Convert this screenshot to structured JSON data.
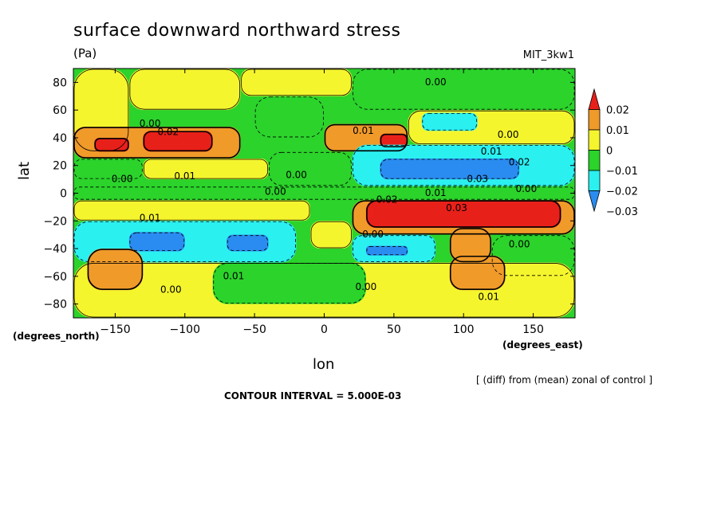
{
  "header": {
    "title": "surface downward northward stress",
    "units": "(Pa)",
    "model": "MIT_3kw1"
  },
  "footer": {
    "note": "[ (diff) from (mean) zonal of control ]",
    "contour_interval": "CONTOUR INTERVAL = 5.000E-03"
  },
  "chart_data": {
    "type": "heatmap",
    "title": "surface downward northward stress",
    "subtitle": "(Pa)",
    "xlabel": "lon",
    "ylabel": "lat",
    "x_unit_label": "(degrees_east)",
    "y_unit_label": "(degrees_north)",
    "xlim": [
      -180,
      180
    ],
    "ylim": [
      -90,
      90
    ],
    "x_ticks": [
      -150,
      -100,
      -50,
      0,
      50,
      100,
      150
    ],
    "y_ticks": [
      80,
      60,
      40,
      20,
      0,
      -20,
      -40,
      -60,
      -80
    ],
    "colorbar": {
      "tick_labels": [
        "0.02",
        "0.01",
        "0",
        "−0.01",
        "−0.02",
        "−0.03"
      ],
      "tick_values": [
        0.02,
        0.01,
        0,
        -0.01,
        -0.02,
        -0.03
      ],
      "levels": [
        {
          "range": [
            0.02,
            0.03
          ],
          "color": "#e8201a"
        },
        {
          "range": [
            0.01,
            0.02
          ],
          "color": "#f09a2a"
        },
        {
          "range": [
            0.0,
            0.01
          ],
          "color": "#f5f52e"
        },
        {
          "range": [
            -0.01,
            0.0
          ],
          "color": "#2bd32b"
        },
        {
          "range": [
            -0.02,
            -0.01
          ],
          "color": "#2bf0f0"
        },
        {
          "range": [
            -0.03,
            -0.02
          ],
          "color": "#2a8cf0"
        }
      ]
    },
    "contour_interval": 0.005,
    "contour_labels": [
      {
        "lon": 80,
        "lat": 80,
        "text": "0.00"
      },
      {
        "lon": -125,
        "lat": 50,
        "text": "0.00"
      },
      {
        "lon": -112,
        "lat": 44,
        "text": "0.02"
      },
      {
        "lon": 28,
        "lat": 45,
        "text": "0.01"
      },
      {
        "lon": 132,
        "lat": 42,
        "text": "0.00"
      },
      {
        "lon": 120,
        "lat": 30,
        "text": "0.01"
      },
      {
        "lon": 140,
        "lat": 22,
        "text": "0.02"
      },
      {
        "lon": 110,
        "lat": 10,
        "text": "0.03"
      },
      {
        "lon": -145,
        "lat": 10,
        "text": "0.00"
      },
      {
        "lon": -100,
        "lat": 12,
        "text": "0.01"
      },
      {
        "lon": -20,
        "lat": 13,
        "text": "0.00"
      },
      {
        "lon": -35,
        "lat": 1,
        "text": "0.00"
      },
      {
        "lon": 45,
        "lat": -5,
        "text": "0.02"
      },
      {
        "lon": 80,
        "lat": 0,
        "text": "0.01"
      },
      {
        "lon": 95,
        "lat": -11,
        "text": "0.03"
      },
      {
        "lon": 145,
        "lat": 3,
        "text": "0.00"
      },
      {
        "lon": -125,
        "lat": -18,
        "text": "0.01"
      },
      {
        "lon": 35,
        "lat": -30,
        "text": "0.00"
      },
      {
        "lon": 140,
        "lat": -37,
        "text": "0.00"
      },
      {
        "lon": -65,
        "lat": -60,
        "text": "0.01"
      },
      {
        "lon": -110,
        "lat": -70,
        "text": "0.00"
      },
      {
        "lon": 30,
        "lat": -68,
        "text": "0.00"
      },
      {
        "lon": 118,
        "lat": -75,
        "text": "0.01"
      }
    ],
    "regions": [
      {
        "lon": [
          -180,
          -140
        ],
        "lat": [
          30,
          90
        ],
        "value": 0.005
      },
      {
        "lon": [
          -140,
          -60
        ],
        "lat": [
          60,
          90
        ],
        "value": 0.005
      },
      {
        "lon": [
          -60,
          20
        ],
        "lat": [
          70,
          90
        ],
        "value": 0.005
      },
      {
        "lon": [
          20,
          180
        ],
        "lat": [
          60,
          90
        ],
        "value": -0.005
      },
      {
        "lon": [
          -180,
          -60
        ],
        "lat": [
          25,
          48
        ],
        "value": 0.015
      },
      {
        "lon": [
          -165,
          -140
        ],
        "lat": [
          30,
          40
        ],
        "value": 0.025
      },
      {
        "lon": [
          -130,
          -80
        ],
        "lat": [
          30,
          45
        ],
        "value": 0.025
      },
      {
        "lon": [
          -50,
          0
        ],
        "lat": [
          40,
          70
        ],
        "value": -0.005
      },
      {
        "lon": [
          0,
          60
        ],
        "lat": [
          30,
          50
        ],
        "value": 0.015
      },
      {
        "lon": [
          40,
          60
        ],
        "lat": [
          33,
          43
        ],
        "value": 0.025
      },
      {
        "lon": [
          60,
          180
        ],
        "lat": [
          35,
          60
        ],
        "value": 0.005
      },
      {
        "lon": [
          70,
          110
        ],
        "lat": [
          45,
          58
        ],
        "value": -0.015
      },
      {
        "lon": [
          -180,
          -130
        ],
        "lat": [
          10,
          25
        ],
        "value": -0.005
      },
      {
        "lon": [
          -130,
          -40
        ],
        "lat": [
          10,
          25
        ],
        "value": 0.005
      },
      {
        "lon": [
          -40,
          20
        ],
        "lat": [
          5,
          30
        ],
        "value": -0.005
      },
      {
        "lon": [
          20,
          180
        ],
        "lat": [
          5,
          35
        ],
        "value": -0.015
      },
      {
        "lon": [
          40,
          140
        ],
        "lat": [
          10,
          25
        ],
        "value": -0.025
      },
      {
        "lon": [
          -180,
          180
        ],
        "lat": [
          -5,
          5
        ],
        "value": -0.005
      },
      {
        "lon": [
          -180,
          -10
        ],
        "lat": [
          -20,
          -5
        ],
        "value": 0.005
      },
      {
        "lon": [
          -180,
          -20
        ],
        "lat": [
          -50,
          -20
        ],
        "value": -0.015
      },
      {
        "lon": [
          -140,
          -100
        ],
        "lat": [
          -42,
          -28
        ],
        "value": -0.025
      },
      {
        "lon": [
          -70,
          -40
        ],
        "lat": [
          -42,
          -30
        ],
        "value": -0.025
      },
      {
        "lon": [
          -10,
          20
        ],
        "lat": [
          -40,
          -20
        ],
        "value": 0.005
      },
      {
        "lon": [
          20,
          80
        ],
        "lat": [
          -50,
          -30
        ],
        "value": -0.015
      },
      {
        "lon": [
          30,
          60
        ],
        "lat": [
          -45,
          -38
        ],
        "value": -0.025
      },
      {
        "lon": [
          20,
          180
        ],
        "lat": [
          -30,
          -5
        ],
        "value": 0.015
      },
      {
        "lon": [
          30,
          170
        ],
        "lat": [
          -25,
          -5
        ],
        "value": 0.025
      },
      {
        "lon": [
          90,
          120
        ],
        "lat": [
          -50,
          -25
        ],
        "value": 0.015
      },
      {
        "lon": [
          120,
          180
        ],
        "lat": [
          -60,
          -30
        ],
        "value": -0.005
      },
      {
        "lon": [
          -180,
          180
        ],
        "lat": [
          -90,
          -50
        ],
        "value": 0.005
      },
      {
        "lon": [
          -170,
          -130
        ],
        "lat": [
          -70,
          -40
        ],
        "value": 0.015
      },
      {
        "lon": [
          -80,
          30
        ],
        "lat": [
          -80,
          -50
        ],
        "value": -0.005
      },
      {
        "lon": [
          90,
          130
        ],
        "lat": [
          -70,
          -45
        ],
        "value": 0.015
      }
    ]
  }
}
